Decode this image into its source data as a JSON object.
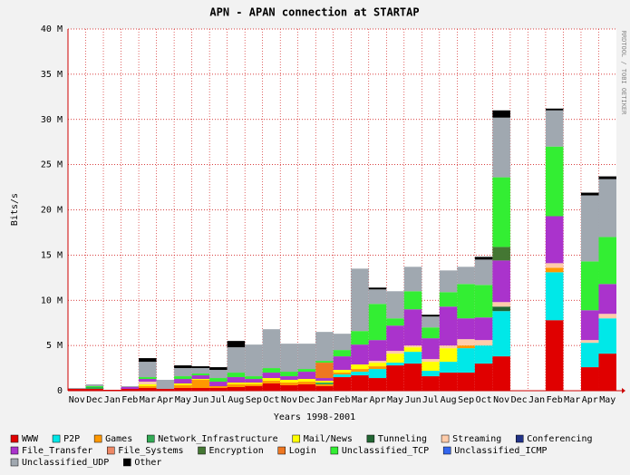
{
  "chart_data": {
    "type": "stacked-bar",
    "title": "APN - APAN connection at STARTAP",
    "x_label": "Years 1998-2001",
    "y_label": "Bits/s",
    "side_note": "RRDTOOL / TOBI OETIKER",
    "categories": [
      "Nov",
      "Dec",
      "Jan",
      "Feb",
      "Mar",
      "Apr",
      "May",
      "Jun",
      "Jul",
      "Aug",
      "Sep",
      "Oct",
      "Nov",
      "Dec",
      "Jan",
      "Feb",
      "Mar",
      "Apr",
      "May",
      "Jun",
      "Jul",
      "Aug",
      "Sep",
      "Oct",
      "Nov",
      "Dec",
      "Jan",
      "Feb",
      "Mar",
      "Apr",
      "May"
    ],
    "ylim": [
      0,
      40
    ],
    "yticks": [
      {
        "value": 0,
        "label": "0"
      },
      {
        "value": 5,
        "label": "5 M"
      },
      {
        "value": 10,
        "label": "10 M"
      },
      {
        "value": 15,
        "label": "15 M"
      },
      {
        "value": 20,
        "label": "20 M"
      },
      {
        "value": 25,
        "label": "25 M"
      },
      {
        "value": 30,
        "label": "30 M"
      },
      {
        "value": 35,
        "label": "35 M"
      },
      {
        "value": 40,
        "label": "40 M"
      }
    ],
    "grid": true,
    "series": [
      {
        "name": "WWW",
        "color": "#e00000",
        "values": [
          0.2,
          0.2,
          0.1,
          0.2,
          0.3,
          0.2,
          0.3,
          0.3,
          0.3,
          0.4,
          0.5,
          0.8,
          0.6,
          0.7,
          0.5,
          1.5,
          1.7,
          1.4,
          2.8,
          3.0,
          1.6,
          2.0,
          2.0,
          3.0,
          3.8,
          null,
          null,
          7.8,
          null,
          2.6,
          4.1
        ]
      },
      {
        "name": "P2P",
        "color": "#00e8e8",
        "values": [
          0,
          0,
          0,
          0,
          0,
          0,
          0,
          0,
          0,
          0,
          0,
          0,
          0,
          0,
          0,
          0.3,
          0.4,
          1.0,
          0.3,
          1.3,
          0.6,
          1.2,
          2.7,
          2.0,
          5.0,
          null,
          null,
          5.3,
          null,
          2.7,
          3.9
        ]
      },
      {
        "name": "Games",
        "color": "#ff9900",
        "values": [
          0,
          0,
          0,
          0,
          0.2,
          0,
          0.3,
          0.9,
          0.2,
          0.3,
          0.2,
          0.3,
          0.3,
          0.3,
          0.2,
          0.2,
          0.3,
          0.3,
          0,
          0,
          0,
          0,
          0.3,
          0,
          0,
          null,
          null,
          0.5,
          null,
          0,
          0
        ]
      },
      {
        "name": "Network_Infrastructure",
        "color": "#33aa55",
        "values": [
          0,
          0.2,
          0,
          0,
          0,
          0,
          0,
          0,
          0,
          0,
          0,
          0,
          0,
          0,
          0.2,
          0,
          0,
          0,
          0,
          0,
          0,
          0,
          0,
          0,
          0,
          null,
          null,
          0,
          null,
          0,
          0
        ]
      },
      {
        "name": "Mail/News",
        "color": "#ffff00",
        "values": [
          0,
          0,
          0,
          0,
          0.2,
          0,
          0.2,
          0.1,
          0,
          0.2,
          0.2,
          0.3,
          0.3,
          0.3,
          0.2,
          0.3,
          0.5,
          0.4,
          1.0,
          0.5,
          1.0,
          1.5,
          0,
          0,
          0,
          null,
          null,
          0,
          null,
          0,
          0
        ]
      },
      {
        "name": "Tunneling",
        "color": "#226633",
        "values": [
          0,
          0,
          0,
          0,
          0,
          0,
          0,
          0,
          0,
          0,
          0,
          0,
          0,
          0,
          0,
          0,
          0,
          0,
          0,
          0,
          0,
          0,
          0,
          0,
          0.5,
          null,
          null,
          0,
          null,
          0,
          0
        ]
      },
      {
        "name": "Streaming",
        "color": "#ffccaa",
        "values": [
          0,
          0,
          0,
          0,
          0.3,
          0,
          0,
          0,
          0,
          0,
          0,
          0,
          0,
          0,
          0,
          0,
          0,
          0.2,
          0.3,
          0.2,
          0.3,
          0.3,
          0.7,
          0.6,
          0.5,
          null,
          null,
          0.5,
          null,
          0.3,
          0.5
        ]
      },
      {
        "name": "Conferencing",
        "color": "#223388",
        "values": [
          0,
          0,
          0,
          0,
          0,
          0,
          0,
          0,
          0,
          0,
          0,
          0,
          0,
          0,
          0,
          0,
          0,
          0,
          0,
          0,
          0,
          0,
          0,
          0,
          0,
          null,
          null,
          0,
          null,
          0,
          0
        ]
      },
      {
        "name": "File_Transfer",
        "color": "#aa33cc",
        "values": [
          0,
          0,
          0,
          0.2,
          0.3,
          0,
          0.5,
          0.4,
          0.5,
          0.6,
          0.4,
          0.6,
          0.4,
          0.8,
          0.3,
          1.5,
          2.2,
          2.3,
          2.8,
          4.0,
          2.3,
          4.3,
          2.3,
          2.5,
          4.6,
          null,
          null,
          5.2,
          null,
          3.3,
          3.3
        ]
      },
      {
        "name": "File_Systems",
        "color": "#ee8866",
        "values": [
          0,
          0,
          0,
          0,
          0,
          0,
          0,
          0,
          0,
          0,
          0,
          0,
          0,
          0,
          0,
          0,
          0,
          0,
          0,
          0,
          0,
          0,
          0,
          0,
          0,
          null,
          null,
          0,
          null,
          0,
          0
        ]
      },
      {
        "name": "Encryption",
        "color": "#447733",
        "values": [
          0,
          0,
          0,
          0,
          0,
          0,
          0,
          0,
          0,
          0,
          0,
          0,
          0,
          0,
          0,
          0,
          0,
          0,
          0,
          0,
          0,
          0,
          0,
          0,
          1.5,
          null,
          null,
          0,
          null,
          0,
          0
        ]
      },
      {
        "name": "Login",
        "color": "#ee7722",
        "values": [
          0,
          0,
          0,
          0,
          0,
          0,
          0,
          0,
          0,
          0,
          0,
          0,
          0,
          0,
          1.7,
          0,
          0,
          0,
          0,
          0,
          0,
          0,
          0,
          0,
          0,
          null,
          null,
          0,
          null,
          0,
          0
        ]
      },
      {
        "name": "Unclassified_TCP",
        "color": "#33ee33",
        "values": [
          0,
          0.1,
          0,
          0,
          0.2,
          0,
          0.3,
          0.2,
          0.4,
          0.5,
          0.3,
          0.5,
          0.5,
          0.3,
          0.2,
          0.7,
          1.5,
          4.0,
          0.8,
          2.0,
          1.2,
          1.6,
          3.8,
          3.6,
          7.7,
          null,
          null,
          7.7,
          null,
          5.4,
          5.2
        ]
      },
      {
        "name": "Unclassified_ICMP",
        "color": "#3366ee",
        "values": [
          0,
          0,
          0,
          0,
          0,
          0,
          0,
          0,
          0,
          0,
          0,
          0,
          0,
          0,
          0,
          0,
          0,
          0,
          0,
          0,
          0,
          0,
          0,
          0,
          0,
          null,
          null,
          0,
          null,
          0,
          0
        ]
      },
      {
        "name": "Unclassified_UDP",
        "color": "#a0a8b0",
        "values": [
          0.1,
          0.2,
          0,
          0.1,
          1.7,
          1.0,
          0.9,
          0.6,
          0.9,
          2.8,
          3.5,
          4.3,
          3.1,
          2.8,
          3.2,
          1.8,
          6.9,
          1.6,
          3.0,
          2.7,
          1.2,
          2.4,
          1.9,
          2.8,
          6.6,
          null,
          null,
          4.0,
          null,
          7.3,
          6.4
        ]
      },
      {
        "name": "Other",
        "color": "#000000",
        "values": [
          0,
          0,
          0,
          0,
          0.4,
          0,
          0.3,
          0.2,
          0.3,
          0.7,
          0,
          0,
          0,
          0,
          0,
          0,
          0,
          0.2,
          0,
          0,
          0.2,
          0,
          0,
          0.3,
          0.8,
          null,
          null,
          0.2,
          null,
          0.3,
          0.3
        ]
      }
    ]
  }
}
